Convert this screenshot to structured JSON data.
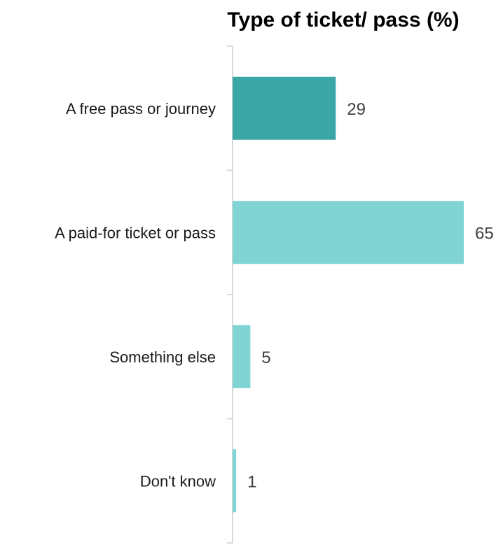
{
  "chart_data": {
    "type": "bar",
    "orientation": "horizontal",
    "title": "Type of ticket/ pass (%)",
    "xlabel": "",
    "ylabel": "",
    "categories": [
      "A free pass or journey",
      "A paid-for ticket or pass",
      "Something else",
      "Don't know"
    ],
    "values": [
      29,
      65,
      5,
      1
    ],
    "value_labels": [
      "29",
      "65",
      "5",
      "1"
    ],
    "xlim": [
      0,
      65
    ],
    "grid": false,
    "legend": "none",
    "bar_colors": [
      "#3aa6a6",
      "#80d4d4",
      "#80d4d4",
      "#80d4d4"
    ],
    "axis_color": "#d9d9d9"
  }
}
